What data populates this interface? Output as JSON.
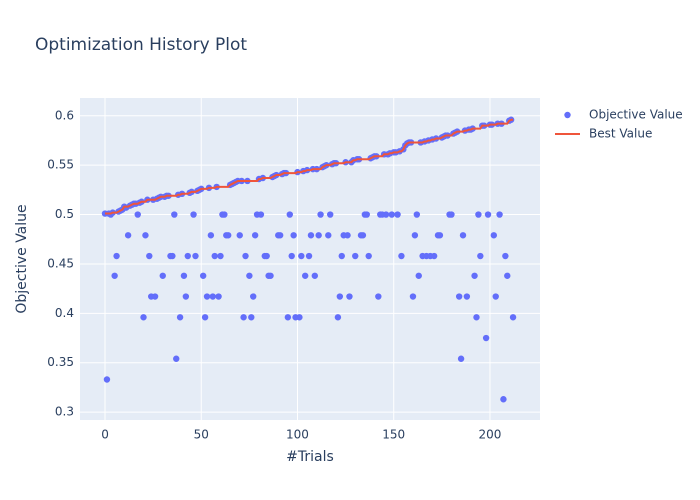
{
  "chart_data": {
    "type": "scatter",
    "title": "Optimization History Plot",
    "xlabel": "#Trials",
    "ylabel": "Objective Value",
    "xlim": [
      -13,
      226
    ],
    "ylim": [
      0.292,
      0.618
    ],
    "xticks": [
      0,
      50,
      100,
      150,
      200
    ],
    "yticks": [
      0.3,
      0.35,
      0.4,
      0.45,
      0.5,
      0.55,
      0.6
    ],
    "grid": true,
    "legend": "right",
    "x": [
      0,
      1,
      2,
      3,
      4,
      5,
      6,
      7,
      8,
      9,
      10,
      11,
      12,
      13,
      14,
      15,
      16,
      17,
      18,
      19,
      20,
      21,
      22,
      23,
      24,
      25,
      26,
      27,
      28,
      29,
      30,
      31,
      32,
      33,
      34,
      35,
      36,
      37,
      38,
      39,
      40,
      41,
      42,
      43,
      44,
      45,
      46,
      47,
      48,
      49,
      50,
      51,
      52,
      53,
      54,
      55,
      56,
      57,
      58,
      59,
      60,
      61,
      62,
      63,
      64,
      65,
      66,
      67,
      68,
      69,
      70,
      71,
      72,
      73,
      74,
      75,
      76,
      77,
      78,
      79,
      80,
      81,
      82,
      83,
      84,
      85,
      86,
      87,
      88,
      89,
      90,
      91,
      92,
      93,
      94,
      95,
      96,
      97,
      98,
      99,
      100,
      101,
      102,
      103,
      104,
      105,
      106,
      107,
      108,
      109,
      110,
      111,
      112,
      113,
      114,
      115,
      116,
      117,
      118,
      119,
      120,
      121,
      122,
      123,
      124,
      125,
      126,
      127,
      128,
      129,
      130,
      131,
      132,
      133,
      134,
      135,
      136,
      137,
      138,
      139,
      140,
      141,
      142,
      143,
      144,
      145,
      146,
      147,
      148,
      149,
      150,
      151,
      152,
      153,
      154,
      155,
      156,
      157,
      158,
      159,
      160,
      161,
      162,
      163,
      164,
      165,
      166,
      167,
      168,
      169,
      170,
      171,
      172,
      173,
      174,
      175,
      176,
      177,
      178,
      179,
      180,
      181,
      182,
      183,
      184,
      185,
      186,
      187,
      188,
      189,
      190,
      191,
      192,
      193,
      194,
      195,
      196,
      197,
      198,
      199,
      200,
      201,
      202,
      203,
      204,
      205,
      206,
      207,
      208,
      209,
      210,
      211,
      212
    ],
    "series": [
      {
        "name": "Objective Value",
        "type": "scatter",
        "color": "#636efa",
        "values": [
          0.501,
          0.333,
          0.501,
          0.5,
          0.502,
          0.438,
          0.458,
          0.503,
          0.504,
          0.505,
          0.508,
          0.507,
          0.479,
          0.509,
          0.51,
          0.511,
          0.511,
          0.5,
          0.512,
          0.513,
          0.396,
          0.479,
          0.515,
          0.458,
          0.417,
          0.515,
          0.417,
          0.516,
          0.517,
          0.518,
          0.438,
          0.518,
          0.519,
          0.519,
          0.458,
          0.458,
          0.5,
          0.354,
          0.52,
          0.396,
          0.521,
          0.438,
          0.417,
          0.458,
          0.522,
          0.523,
          0.5,
          0.458,
          0.524,
          0.525,
          0.526,
          0.438,
          0.396,
          0.417,
          0.527,
          0.479,
          0.417,
          0.458,
          0.528,
          0.417,
          0.458,
          0.5,
          0.5,
          0.479,
          0.479,
          0.53,
          0.531,
          0.532,
          0.533,
          0.534,
          0.479,
          0.534,
          0.396,
          0.458,
          0.534,
          0.438,
          0.396,
          0.417,
          0.479,
          0.5,
          0.536,
          0.5,
          0.537,
          0.458,
          0.458,
          0.438,
          0.438,
          0.538,
          0.539,
          0.54,
          0.479,
          0.479,
          0.541,
          0.542,
          0.542,
          0.396,
          0.5,
          0.458,
          0.479,
          0.396,
          0.543,
          0.396,
          0.458,
          0.544,
          0.438,
          0.545,
          0.458,
          0.479,
          0.546,
          0.438,
          0.546,
          0.479,
          0.5,
          0.548,
          0.549,
          0.55,
          0.479,
          0.5,
          0.551,
          0.552,
          0.552,
          0.396,
          0.417,
          0.458,
          0.479,
          0.553,
          0.479,
          0.417,
          0.553,
          0.555,
          0.458,
          0.556,
          0.556,
          0.479,
          0.479,
          0.5,
          0.5,
          0.458,
          0.557,
          0.558,
          0.559,
          0.559,
          0.417,
          0.5,
          0.5,
          0.561,
          0.5,
          0.561,
          0.562,
          0.5,
          0.563,
          0.563,
          0.5,
          0.564,
          0.458,
          0.566,
          0.57,
          0.572,
          0.573,
          0.573,
          0.417,
          0.479,
          0.5,
          0.438,
          0.573,
          0.458,
          0.574,
          0.458,
          0.575,
          0.458,
          0.576,
          0.458,
          0.577,
          0.479,
          0.479,
          0.578,
          0.579,
          0.58,
          0.58,
          0.5,
          0.5,
          0.582,
          0.583,
          0.584,
          0.417,
          0.354,
          0.479,
          0.585,
          0.417,
          0.586,
          0.586,
          0.587,
          0.438,
          0.396,
          0.5,
          0.458,
          0.59,
          0.59,
          0.375,
          0.5,
          0.591,
          0.591,
          0.479,
          0.417,
          0.592,
          0.5,
          0.592,
          0.313,
          0.458,
          0.438,
          0.595,
          0.596,
          0.396
        ]
      },
      {
        "name": "Best Value",
        "type": "line",
        "color": "#ef553b",
        "values": [
          0.501,
          0.501,
          0.501,
          0.501,
          0.502,
          0.502,
          0.502,
          0.503,
          0.504,
          0.505,
          0.508,
          0.508,
          0.508,
          0.509,
          0.51,
          0.511,
          0.511,
          0.511,
          0.512,
          0.513,
          0.513,
          0.513,
          0.515,
          0.515,
          0.515,
          0.515,
          0.515,
          0.516,
          0.517,
          0.518,
          0.518,
          0.518,
          0.519,
          0.519,
          0.519,
          0.519,
          0.519,
          0.519,
          0.52,
          0.52,
          0.521,
          0.521,
          0.521,
          0.521,
          0.522,
          0.523,
          0.523,
          0.523,
          0.524,
          0.525,
          0.526,
          0.526,
          0.526,
          0.526,
          0.527,
          0.527,
          0.527,
          0.527,
          0.528,
          0.528,
          0.528,
          0.528,
          0.528,
          0.528,
          0.528,
          0.53,
          0.531,
          0.532,
          0.533,
          0.534,
          0.534,
          0.534,
          0.534,
          0.534,
          0.534,
          0.534,
          0.534,
          0.534,
          0.534,
          0.534,
          0.536,
          0.536,
          0.537,
          0.537,
          0.537,
          0.537,
          0.537,
          0.538,
          0.539,
          0.54,
          0.54,
          0.54,
          0.541,
          0.542,
          0.542,
          0.542,
          0.542,
          0.542,
          0.542,
          0.542,
          0.543,
          0.543,
          0.543,
          0.544,
          0.544,
          0.545,
          0.545,
          0.545,
          0.546,
          0.546,
          0.546,
          0.546,
          0.546,
          0.548,
          0.549,
          0.55,
          0.55,
          0.55,
          0.551,
          0.552,
          0.552,
          0.552,
          0.552,
          0.552,
          0.552,
          0.553,
          0.553,
          0.553,
          0.553,
          0.555,
          0.555,
          0.556,
          0.556,
          0.556,
          0.556,
          0.556,
          0.556,
          0.556,
          0.557,
          0.558,
          0.559,
          0.559,
          0.559,
          0.559,
          0.559,
          0.561,
          0.561,
          0.561,
          0.562,
          0.562,
          0.563,
          0.563,
          0.563,
          0.564,
          0.564,
          0.566,
          0.57,
          0.572,
          0.573,
          0.573,
          0.573,
          0.573,
          0.573,
          0.573,
          0.573,
          0.573,
          0.574,
          0.574,
          0.575,
          0.575,
          0.576,
          0.576,
          0.577,
          0.577,
          0.577,
          0.578,
          0.579,
          0.58,
          0.58,
          0.58,
          0.58,
          0.582,
          0.583,
          0.584,
          0.584,
          0.584,
          0.584,
          0.585,
          0.585,
          0.586,
          0.586,
          0.587,
          0.587,
          0.587,
          0.587,
          0.587,
          0.59,
          0.59,
          0.59,
          0.59,
          0.591,
          0.591,
          0.591,
          0.591,
          0.592,
          0.592,
          0.592,
          0.592,
          0.592,
          0.592,
          0.595,
          0.596,
          0.596
        ]
      }
    ]
  }
}
